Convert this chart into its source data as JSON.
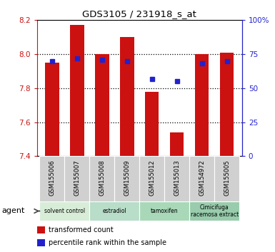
{
  "title": "GDS3105 / 231918_s_at",
  "samples": [
    "GSM155006",
    "GSM155007",
    "GSM155008",
    "GSM155009",
    "GSM155012",
    "GSM155013",
    "GSM154972",
    "GSM155005"
  ],
  "bar_values": [
    7.95,
    8.17,
    8.0,
    8.1,
    7.78,
    7.54,
    8.0,
    8.01
  ],
  "percentile_values": [
    70,
    72,
    71,
    70,
    57,
    55,
    68,
    70
  ],
  "ylim_left": [
    7.4,
    8.2
  ],
  "ylim_right": [
    0,
    100
  ],
  "left_ticks": [
    7.4,
    7.6,
    7.8,
    8.0,
    8.2
  ],
  "right_ticks": [
    0,
    25,
    50,
    75,
    100
  ],
  "right_tick_labels": [
    "0",
    "25",
    "50",
    "75",
    "100%"
  ],
  "grid_values": [
    7.6,
    7.8,
    8.0
  ],
  "bar_color": "#cc1111",
  "percentile_color": "#2222cc",
  "groups": [
    {
      "label": "solvent control",
      "start": 0,
      "end": 2
    },
    {
      "label": "estradiol",
      "start": 2,
      "end": 4
    },
    {
      "label": "tamoxifen",
      "start": 4,
      "end": 6
    },
    {
      "label": "Cimicifuga\nracemosa extract",
      "start": 6,
      "end": 8
    }
  ],
  "group_colors": [
    "#d8edd8",
    "#b8ddc8",
    "#a8d8b8",
    "#98ccac"
  ],
  "sample_box_color": "#d0d0d0",
  "legend_items": [
    {
      "label": "transformed count",
      "color": "#cc1111",
      "marker": "s"
    },
    {
      "label": "percentile rank within the sample",
      "color": "#2222cc",
      "marker": "s"
    }
  ],
  "bar_width": 0.55,
  "tick_color_left": "#cc1111",
  "tick_color_right": "#2222cc",
  "bar_bottom": 7.4,
  "agent_label": "agent"
}
